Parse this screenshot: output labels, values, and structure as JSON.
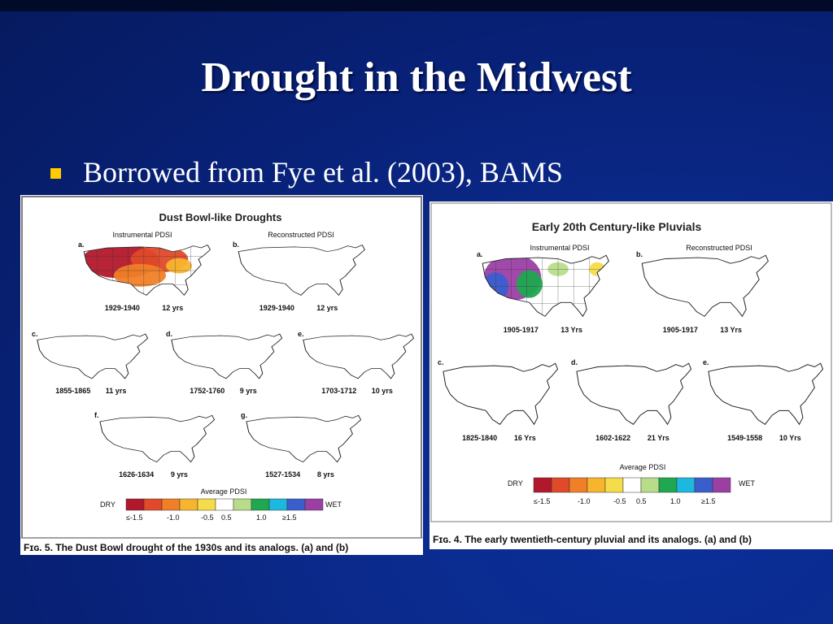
{
  "slide": {
    "title": "Drought in the Midwest",
    "bullet": "Borrowed from Fye et al. (2003), BAMS",
    "colors": {
      "background": "#0b2a8c",
      "bullet": "#ffcc00",
      "text": "#ffffff"
    }
  },
  "fig5": {
    "title": "Dust Bowl-like Droughts",
    "sub_a": "Instrumental PDSI",
    "sub_b": "Reconstructed PDSI",
    "letters": [
      "a.",
      "b.",
      "c.",
      "d.",
      "e.",
      "f.",
      "g."
    ],
    "maps": [
      {
        "period": "1929-1940",
        "yrs": "12 yrs"
      },
      {
        "period": "1929-1940",
        "yrs": "12 yrs"
      },
      {
        "period": "1855-1865",
        "yrs": "11 yrs"
      },
      {
        "period": "1752-1760",
        "yrs": "9 yrs"
      },
      {
        "period": "1703-1712",
        "yrs": "10 yrs"
      },
      {
        "period": "1626-1634",
        "yrs": "9 yrs"
      },
      {
        "period": "1527-1534",
        "yrs": "8 yrs"
      }
    ],
    "legend": {
      "title": "Average PDSI",
      "dry": "DRY",
      "wet": "WET",
      "ticks": [
        "≤-1.5",
        "-1.0",
        "-0.5",
        "0.5",
        "1.0",
        "≥1.5"
      ]
    },
    "caption": "Fɪɢ. 5. The Dust Bowl drought of the 1930s and its analogs. (a) and (b)"
  },
  "fig4": {
    "title": "Early 20th Century-like Pluvials",
    "sub_a": "Instrumental PDSI",
    "sub_b": "Reconstructed PDSI",
    "letters": [
      "a.",
      "b.",
      "c.",
      "d.",
      "e."
    ],
    "maps": [
      {
        "period": "1905-1917",
        "yrs": "13 Yrs"
      },
      {
        "period": "1905-1917",
        "yrs": "13 Yrs"
      },
      {
        "period": "1825-1840",
        "yrs": "16 Yrs"
      },
      {
        "period": "1602-1622",
        "yrs": "21 Yrs"
      },
      {
        "period": "1549-1558",
        "yrs": "10 Yrs"
      }
    ],
    "legend": {
      "title": "Average PDSI",
      "dry": "DRY",
      "wet": "WET",
      "ticks": [
        "≤-1.5",
        "-1.0",
        "-0.5",
        "0.5",
        "1.0",
        "≥1.5"
      ]
    },
    "caption": "Fɪɢ. 4. The early twentieth-century pluvial and its analogs. (a) and (b)"
  },
  "legend_colors": [
    "#b2182b",
    "#e04a2a",
    "#f07f28",
    "#f7b52e",
    "#f5dc4a",
    "#ffffff",
    "#b8dd8a",
    "#1fa84f",
    "#1db8df",
    "#3a5fcd",
    "#7a3a9e",
    "#9b3fa5"
  ]
}
